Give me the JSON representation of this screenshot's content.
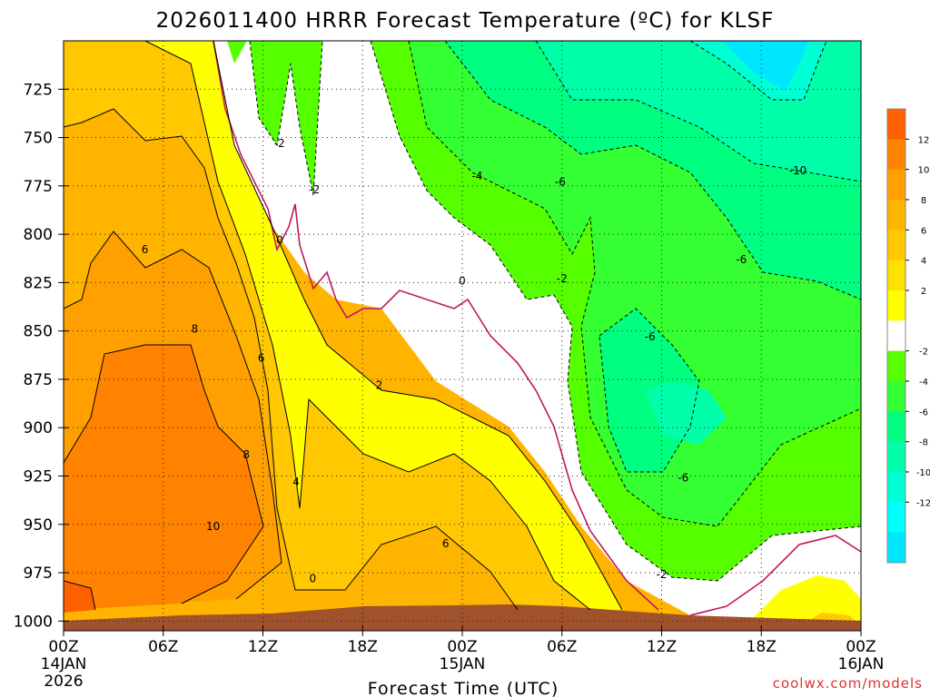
{
  "chart_data": {
    "type": "contour",
    "title": "2026011400 HRRR Forecast Temperature (ºC) for KLSF",
    "xlabel": "Forecast Time (UTC)",
    "credit": "coolwx.com/models",
    "x_ticks": [
      {
        "hour": 0,
        "label": "00Z",
        "sub": [
          "14JAN",
          "2026"
        ]
      },
      {
        "hour": 6,
        "label": "06Z",
        "sub": []
      },
      {
        "hour": 12,
        "label": "12Z",
        "sub": []
      },
      {
        "hour": 18,
        "label": "18Z",
        "sub": []
      },
      {
        "hour": 24,
        "label": "00Z",
        "sub": [
          "15JAN"
        ]
      },
      {
        "hour": 30,
        "label": "06Z",
        "sub": []
      },
      {
        "hour": 36,
        "label": "12Z",
        "sub": []
      },
      {
        "hour": 42,
        "label": "18Z",
        "sub": []
      },
      {
        "hour": 48,
        "label": "00Z",
        "sub": [
          "16JAN"
        ]
      }
    ],
    "x_range_hours": [
      0,
      48
    ],
    "y_ticks_hpa": [
      725,
      750,
      775,
      800,
      825,
      850,
      875,
      900,
      925,
      950,
      975,
      1000
    ],
    "y_range_hpa": [
      700,
      1005
    ],
    "grid": true,
    "colorbar": {
      "labels": [
        "12",
        "10",
        "8",
        "6",
        "4",
        "2",
        "-2",
        "-4",
        "-6",
        "-8",
        "-10",
        "-12"
      ],
      "colors": [
        "#ff6000",
        "#ff8200",
        "#ffa000",
        "#ffb400",
        "#ffc800",
        "#ffe100",
        "#ffff00",
        "#ffffff",
        "#55ff00",
        "#33ff33",
        "#00ff80",
        "#00ffa8",
        "#00ffd5",
        "#00ffff",
        "#00e6ff"
      ]
    },
    "contour_labels": [
      {
        "text": "-2",
        "hour": 13.0,
        "hpa": 753
      },
      {
        "text": "-2",
        "hour": 15.1,
        "hpa": 777
      },
      {
        "text": "0",
        "hour": 13.0,
        "hpa": 803
      },
      {
        "text": "0",
        "hour": 24.0,
        "hpa": 824
      },
      {
        "text": "-2",
        "hour": 30.0,
        "hpa": 823
      },
      {
        "text": "-4",
        "hour": 24.9,
        "hpa": 770
      },
      {
        "text": "-6",
        "hour": 29.9,
        "hpa": 773
      },
      {
        "text": "-6",
        "hour": 40.8,
        "hpa": 813
      },
      {
        "text": "-6",
        "hour": 35.3,
        "hpa": 853
      },
      {
        "text": "-6",
        "hour": 37.3,
        "hpa": 926
      },
      {
        "text": "-2",
        "hour": 36.0,
        "hpa": 976
      },
      {
        "text": "-10",
        "hour": 44.2,
        "hpa": 767
      },
      {
        "text": "2",
        "hour": 19.0,
        "hpa": 878
      },
      {
        "text": "4",
        "hour": 14.0,
        "hpa": 928
      },
      {
        "text": "6",
        "hour": 4.9,
        "hpa": 808
      },
      {
        "text": "6",
        "hour": 11.9,
        "hpa": 864
      },
      {
        "text": "6",
        "hour": 23.0,
        "hpa": 960
      },
      {
        "text": "8",
        "hour": 7.9,
        "hpa": 849
      },
      {
        "text": "8",
        "hour": 11.0,
        "hpa": 914
      },
      {
        "text": "10",
        "hour": 9.0,
        "hpa": 951
      },
      {
        "text": "0",
        "hour": 15.0,
        "hpa": 978
      }
    ]
  }
}
